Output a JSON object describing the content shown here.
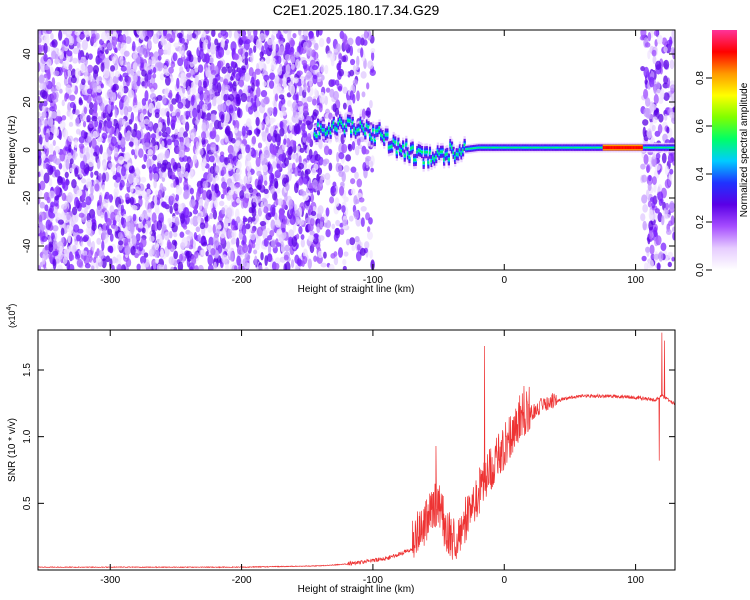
{
  "figure_title": "C2E1.2025.180.17.34.G29",
  "chart_data": [
    {
      "type": "heatmap",
      "xlabel": "Height of straight line (km)",
      "ylabel": "Frequency (Hz)",
      "xlim": [
        -355,
        130
      ],
      "ylim": [
        -50,
        50
      ],
      "xticks": [
        -300,
        -200,
        -100,
        0,
        100
      ],
      "yticks": [
        -40,
        -20,
        0,
        20,
        40
      ],
      "colorbar": {
        "label": "Normalized spectral amplitude",
        "range": [
          0,
          1
        ],
        "ticks": [
          0.0,
          0.2,
          0.4,
          0.6,
          0.8
        ],
        "colormap": [
          "#ffffff",
          "#e6ccff",
          "#a64dff",
          "#5a00e6",
          "#1f33ff",
          "#00ccff",
          "#00ff66",
          "#80ff00",
          "#ffff00",
          "#ff9900",
          "#ff0000",
          "#ff3399"
        ]
      },
      "features": {
        "noise_region_x": [
          -355,
          -140
        ],
        "noise_sparse_x": [
          -140,
          -100
        ],
        "signal_track": [
          [
            -145,
            8
          ],
          [
            -130,
            10
          ],
          [
            -110,
            9
          ],
          [
            -95,
            6
          ],
          [
            -80,
            1
          ],
          [
            -65,
            -3
          ],
          [
            -50,
            -2
          ],
          [
            -35,
            0
          ],
          [
            -20,
            1
          ],
          [
            0,
            1
          ],
          [
            40,
            1
          ],
          [
            80,
            1
          ],
          [
            100,
            1
          ],
          [
            130,
            1
          ]
        ],
        "strong_segment_x": [
          75,
          105
        ],
        "noise_burst_x": [
          105,
          130
        ]
      }
    },
    {
      "type": "line",
      "xlabel": "Height of straight line (km)",
      "ylabel": "SNR (10 * v/v)",
      "y_multiplier_label": "(x10",
      "y_multiplier_exp": "4",
      "y_multiplier_close": ")",
      "xlim": [
        -355,
        130
      ],
      "ylim": [
        0,
        1.8
      ],
      "xticks": [
        -300,
        -200,
        -100,
        0,
        100
      ],
      "yticks": [
        0.5,
        1.0,
        1.5
      ],
      "series": [
        {
          "color": "#ee3333",
          "baseline_points": [
            [
              -355,
              0.02
            ],
            [
              -200,
              0.02
            ],
            [
              -140,
              0.03
            ],
            [
              -110,
              0.05
            ],
            [
              -90,
              0.08
            ],
            [
              -70,
              0.15
            ],
            [
              -60,
              0.3
            ],
            [
              -50,
              0.45
            ],
            [
              -45,
              0.25
            ],
            [
              -38,
              0.15
            ],
            [
              -30,
              0.3
            ],
            [
              -20,
              0.5
            ],
            [
              -10,
              0.7
            ],
            [
              0,
              0.85
            ],
            [
              10,
              1.05
            ],
            [
              20,
              1.15
            ],
            [
              30,
              1.22
            ],
            [
              45,
              1.28
            ],
            [
              60,
              1.3
            ],
            [
              80,
              1.3
            ],
            [
              100,
              1.29
            ],
            [
              115,
              1.27
            ],
            [
              120,
              1.3
            ],
            [
              130,
              1.24
            ]
          ],
          "spikes": [
            [
              -52,
              0.93
            ],
            [
              -15,
              1.68
            ],
            [
              15,
              1.38
            ],
            [
              118,
              0.82
            ],
            [
              120,
              1.78
            ],
            [
              122,
              1.72
            ]
          ]
        }
      ]
    }
  ]
}
